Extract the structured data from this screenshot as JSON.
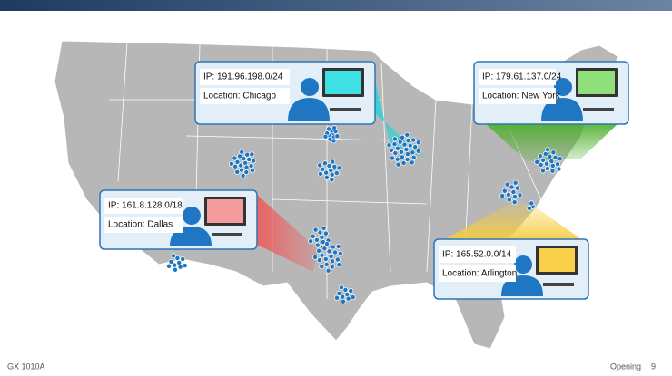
{
  "callouts": [
    {
      "ip": "IP: 191.96.198.0/24",
      "location": "Location: Chicago"
    },
    {
      "ip": "IP: 179.61.137.0/24",
      "location": "Location: New York"
    },
    {
      "ip": "IP: 161.8.128.0/18",
      "location": "Location: Dallas"
    },
    {
      "ip": "IP: 165.52.0.0/14",
      "location": "Location: Arlington"
    }
  ],
  "footer": {
    "code": "GX 1010A",
    "section": "Opening",
    "page": 9
  }
}
